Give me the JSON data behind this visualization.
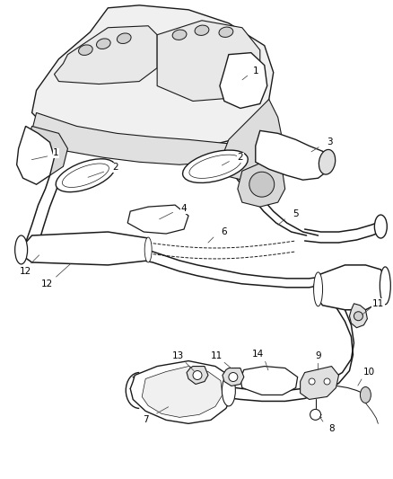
{
  "background_color": "#ffffff",
  "fig_width": 4.38,
  "fig_height": 5.33,
  "dpi": 100,
  "line_color": "#1a1a1a",
  "label_color": "#000000",
  "label_fontsize": 7.5,
  "leader_color": "#444444",
  "leader_lw": 0.55,
  "part_lw": 0.9
}
